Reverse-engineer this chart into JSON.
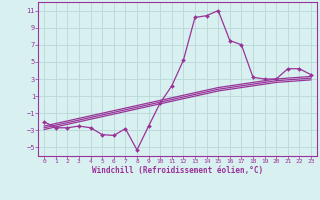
{
  "x_data": [
    0,
    1,
    2,
    3,
    4,
    5,
    6,
    7,
    8,
    9,
    10,
    11,
    12,
    13,
    14,
    15,
    16,
    17,
    18,
    19,
    20,
    21,
    22,
    23
  ],
  "y_main": [
    -2,
    -2.7,
    -2.7,
    -2.5,
    -2.7,
    -3.5,
    -3.6,
    -2.8,
    -5.3,
    -2.5,
    0.2,
    2.2,
    5.2,
    10.2,
    10.4,
    11.0,
    7.5,
    7.0,
    3.2,
    3.0,
    3.0,
    4.2,
    4.2,
    3.5
  ],
  "y_line1": [
    -2.5,
    -2.2,
    -1.9,
    -1.6,
    -1.3,
    -1.0,
    -0.7,
    -0.4,
    -0.1,
    0.2,
    0.5,
    0.8,
    1.1,
    1.4,
    1.7,
    2.0,
    2.2,
    2.4,
    2.6,
    2.8,
    3.0,
    3.1,
    3.2,
    3.3
  ],
  "y_line2": [
    -2.7,
    -2.4,
    -2.1,
    -1.8,
    -1.5,
    -1.2,
    -0.9,
    -0.6,
    -0.3,
    0.0,
    0.3,
    0.6,
    0.9,
    1.2,
    1.5,
    1.8,
    2.0,
    2.2,
    2.4,
    2.6,
    2.8,
    2.9,
    3.0,
    3.1
  ],
  "y_line3": [
    -2.9,
    -2.6,
    -2.3,
    -2.0,
    -1.7,
    -1.4,
    -1.1,
    -0.8,
    -0.5,
    -0.2,
    0.1,
    0.4,
    0.7,
    1.0,
    1.3,
    1.6,
    1.8,
    2.0,
    2.2,
    2.4,
    2.6,
    2.7,
    2.8,
    2.9
  ],
  "line_color": "#993399",
  "bg_color": "#d8f0f0",
  "grid_color": "#b8d8d8",
  "xlabel": "Windchill (Refroidissement éolien,°C)",
  "ylim": [
    -6,
    12
  ],
  "xlim": [
    -0.5,
    23.5
  ],
  "yticks": [
    -5,
    -3,
    -1,
    1,
    3,
    5,
    7,
    9,
    11
  ],
  "xticks": [
    0,
    1,
    2,
    3,
    4,
    5,
    6,
    7,
    8,
    9,
    10,
    11,
    12,
    13,
    14,
    15,
    16,
    17,
    18,
    19,
    20,
    21,
    22,
    23
  ]
}
